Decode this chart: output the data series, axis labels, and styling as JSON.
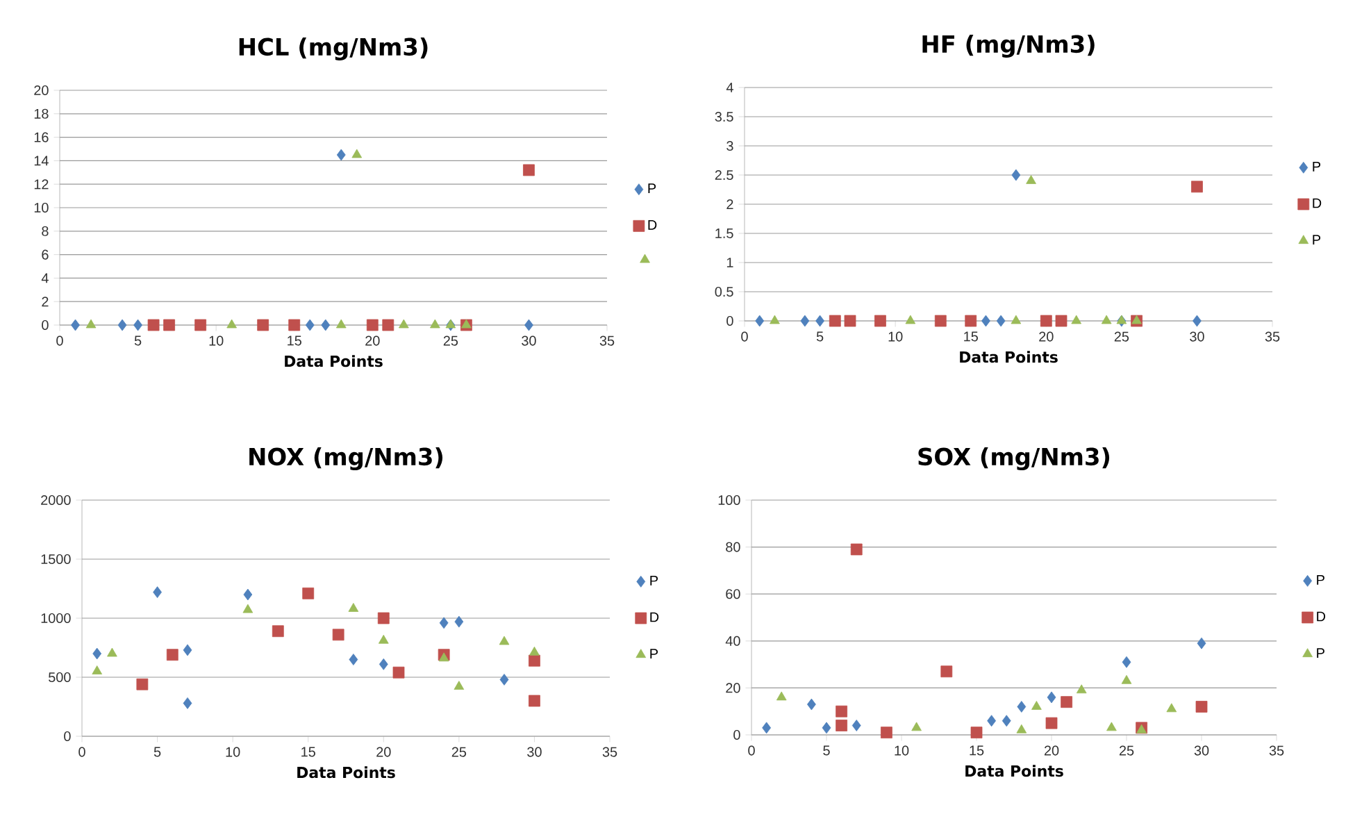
{
  "chart_data": [
    {
      "type": "scatter",
      "title": "HCL (mg/Nm3)",
      "xlabel": "Data Points",
      "xlim": [
        0,
        35
      ],
      "xticks": [
        0,
        5,
        10,
        15,
        20,
        25,
        30,
        35
      ],
      "ylim": [
        0,
        20
      ],
      "yticks": [
        0,
        2,
        4,
        6,
        8,
        10,
        12,
        14,
        16,
        18,
        20
      ],
      "grid": "y",
      "legend": "right",
      "series": [
        {
          "name": "P",
          "color": "#4f81bd",
          "marker": "diamond",
          "x": [
            1,
            4,
            5,
            16,
            17,
            18,
            25,
            30
          ],
          "values": [
            0,
            0,
            0,
            0,
            0,
            14.5,
            0,
            0
          ]
        },
        {
          "name": "D",
          "color": "#c0504d",
          "marker": "square",
          "x": [
            6,
            7,
            9,
            13,
            15,
            20,
            21,
            26,
            30
          ],
          "values": [
            0,
            0,
            0,
            0,
            0,
            0,
            0,
            0,
            13.2
          ]
        },
        {
          "color": "#9bbb59",
          "marker": "triangle",
          "x": [
            2,
            11,
            18,
            19,
            22,
            24,
            25,
            26
          ],
          "values": [
            0,
            0,
            0,
            14.5,
            0,
            0,
            0,
            0
          ]
        }
      ]
    },
    {
      "type": "scatter",
      "title": "HF (mg/Nm3)",
      "xlabel": "Data Points",
      "xlim": [
        0,
        35
      ],
      "xticks": [
        0,
        5,
        10,
        15,
        20,
        25,
        30,
        35
      ],
      "ylim": [
        0,
        4
      ],
      "yticks": [
        0,
        0.5,
        1,
        1.5,
        2,
        2.5,
        3,
        3.5,
        4
      ],
      "grid": "y",
      "legend": "right",
      "series": [
        {
          "name": "P",
          "color": "#4f81bd",
          "marker": "diamond",
          "x": [
            1,
            4,
            5,
            16,
            17,
            18,
            25,
            30
          ],
          "values": [
            0,
            0,
            0,
            0,
            0,
            2.5,
            0,
            0
          ]
        },
        {
          "name": "D",
          "color": "#c0504d",
          "marker": "square",
          "x": [
            6,
            7,
            9,
            13,
            15,
            20,
            21,
            26,
            30
          ],
          "values": [
            0,
            0,
            0,
            0,
            0,
            0,
            0,
            0,
            2.3
          ]
        },
        {
          "name": "P",
          "color": "#9bbb59",
          "marker": "triangle",
          "x": [
            2,
            11,
            18,
            19,
            22,
            24,
            25,
            26
          ],
          "values": [
            0,
            0,
            0,
            2.4,
            0,
            0,
            0,
            0
          ]
        }
      ]
    },
    {
      "type": "scatter",
      "title": "NOX (mg/Nm3)",
      "xlabel": "Data Points",
      "xlim": [
        0,
        35
      ],
      "xticks": [
        0,
        5,
        10,
        15,
        20,
        25,
        30,
        35
      ],
      "ylim": [
        0,
        2000
      ],
      "yticks": [
        0,
        500,
        1000,
        1500,
        2000
      ],
      "grid": "y",
      "legend": "right",
      "series": [
        {
          "name": "P",
          "color": "#4f81bd",
          "marker": "diamond",
          "x": [
            1,
            5,
            7,
            7,
            11,
            18,
            20,
            24,
            25,
            28
          ],
          "values": [
            700,
            1220,
            730,
            280,
            1200,
            650,
            610,
            960,
            970,
            480
          ]
        },
        {
          "name": "D",
          "color": "#c0504d",
          "marker": "square",
          "x": [
            4,
            6,
            13,
            15,
            17,
            20,
            21,
            24,
            30,
            30
          ],
          "values": [
            440,
            690,
            890,
            1210,
            860,
            1000,
            540,
            690,
            640,
            300
          ]
        },
        {
          "name": "P",
          "color": "#9bbb59",
          "marker": "triangle",
          "x": [
            1,
            2,
            11,
            18,
            20,
            24,
            25,
            28,
            30
          ],
          "values": [
            550,
            700,
            1070,
            1080,
            810,
            660,
            420,
            800,
            710
          ]
        }
      ]
    },
    {
      "type": "scatter",
      "title": "SOX (mg/Nm3)",
      "xlabel": "Data Points",
      "xlim": [
        0,
        35
      ],
      "xticks": [
        0,
        5,
        10,
        15,
        20,
        25,
        30,
        35
      ],
      "ylim": [
        0,
        100
      ],
      "yticks": [
        0,
        20,
        40,
        60,
        80,
        100
      ],
      "grid": "y",
      "legend": "right",
      "series": [
        {
          "name": "P",
          "color": "#4f81bd",
          "marker": "diamond",
          "x": [
            1,
            4,
            5,
            7,
            16,
            17,
            18,
            20,
            25,
            30
          ],
          "values": [
            3,
            13,
            3,
            4,
            6,
            6,
            12,
            16,
            31,
            39
          ]
        },
        {
          "name": "D",
          "color": "#c0504d",
          "marker": "square",
          "x": [
            6,
            6,
            7,
            9,
            13,
            15,
            20,
            21,
            26,
            30
          ],
          "values": [
            10,
            4,
            79,
            1,
            27,
            1,
            5,
            14,
            3,
            12
          ]
        },
        {
          "name": "P",
          "color": "#9bbb59",
          "marker": "triangle",
          "x": [
            2,
            11,
            18,
            19,
            22,
            24,
            25,
            26,
            28
          ],
          "values": [
            16,
            3,
            2,
            12,
            19,
            3,
            23,
            2,
            11
          ]
        }
      ]
    }
  ]
}
